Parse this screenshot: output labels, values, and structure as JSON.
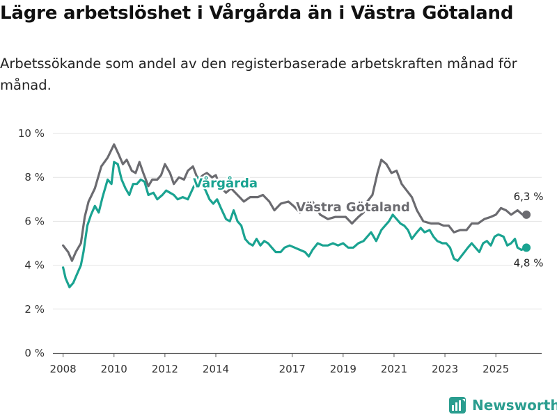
{
  "title": "Lägre arbetslöshet i Vårgårda än i Västra Götaland",
  "subtitle": "Arbetssökande som andel av den registerbaserade arbetskraften månad för månad.",
  "brand": "Newsworthy",
  "colors": {
    "vargarda": "#1aa391",
    "vastra": "#6b6b70",
    "brand": "#2a9d8f",
    "grid": "#e3e3e3",
    "axis": "#333333"
  },
  "chart_data": {
    "type": "line",
    "x_unit": "year (monthly data)",
    "x_range": [
      2007.6,
      2026.8
    ],
    "ylim": [
      0,
      10
    ],
    "yticks": [
      {
        "value": 0,
        "label": "0 %"
      },
      {
        "value": 2,
        "label": "2 %"
      },
      {
        "value": 4,
        "label": "4 %"
      },
      {
        "value": 6,
        "label": "6 %"
      },
      {
        "value": 8,
        "label": "8 %"
      },
      {
        "value": 10,
        "label": "10 %"
      }
    ],
    "xticks": [
      {
        "value": 2008,
        "label": "2008"
      },
      {
        "value": 2010,
        "label": "2010"
      },
      {
        "value": 2012,
        "label": "2012"
      },
      {
        "value": 2014,
        "label": "2014"
      },
      {
        "value": 2017,
        "label": "2017"
      },
      {
        "value": 2019,
        "label": "2019"
      },
      {
        "value": 2021,
        "label": "2021"
      },
      {
        "value": 2023,
        "label": "2023"
      },
      {
        "value": 2025,
        "label": "2025"
      }
    ],
    "series": [
      {
        "name": "Västra Götaland",
        "label": "Västra Götaland",
        "color": "#6b6b70",
        "end_label": "6,3 %",
        "points": [
          [
            2008.0,
            4.9
          ],
          [
            2008.2,
            4.6
          ],
          [
            2008.35,
            4.2
          ],
          [
            2008.5,
            4.6
          ],
          [
            2008.7,
            5.0
          ],
          [
            2008.85,
            6.2
          ],
          [
            2009.0,
            6.9
          ],
          [
            2009.25,
            7.5
          ],
          [
            2009.5,
            8.5
          ],
          [
            2009.75,
            8.9
          ],
          [
            2010.0,
            9.5
          ],
          [
            2010.2,
            9.0
          ],
          [
            2010.35,
            8.6
          ],
          [
            2010.5,
            8.8
          ],
          [
            2010.7,
            8.3
          ],
          [
            2010.85,
            8.2
          ],
          [
            2011.0,
            8.7
          ],
          [
            2011.15,
            8.2
          ],
          [
            2011.35,
            7.6
          ],
          [
            2011.5,
            7.9
          ],
          [
            2011.7,
            7.9
          ],
          [
            2011.85,
            8.1
          ],
          [
            2012.0,
            8.6
          ],
          [
            2012.2,
            8.2
          ],
          [
            2012.35,
            7.7
          ],
          [
            2012.55,
            8.0
          ],
          [
            2012.75,
            7.9
          ],
          [
            2012.9,
            8.3
          ],
          [
            2013.1,
            8.5
          ],
          [
            2013.3,
            7.9
          ],
          [
            2013.5,
            8.1
          ],
          [
            2013.65,
            8.2
          ],
          [
            2013.85,
            8.0
          ],
          [
            2014.0,
            8.1
          ],
          [
            2014.15,
            7.6
          ],
          [
            2014.4,
            7.3
          ],
          [
            2014.6,
            7.5
          ],
          [
            2014.85,
            7.2
          ],
          [
            2015.1,
            6.9
          ],
          [
            2015.35,
            7.1
          ],
          [
            2015.65,
            7.1
          ],
          [
            2015.85,
            7.2
          ],
          [
            2016.1,
            6.9
          ],
          [
            2016.3,
            6.5
          ],
          [
            2016.55,
            6.8
          ],
          [
            2016.85,
            6.9
          ],
          [
            2017.05,
            6.7
          ],
          [
            2017.3,
            6.4
          ],
          [
            2017.5,
            6.6
          ],
          [
            2017.8,
            6.9
          ],
          [
            2018.1,
            6.3
          ],
          [
            2018.4,
            6.1
          ],
          [
            2018.7,
            6.2
          ],
          [
            2018.9,
            6.2
          ],
          [
            2019.1,
            6.2
          ],
          [
            2019.35,
            5.9
          ],
          [
            2019.6,
            6.2
          ],
          [
            2019.8,
            6.4
          ],
          [
            2019.95,
            6.9
          ],
          [
            2020.15,
            7.2
          ],
          [
            2020.35,
            8.2
          ],
          [
            2020.5,
            8.8
          ],
          [
            2020.7,
            8.6
          ],
          [
            2020.9,
            8.2
          ],
          [
            2021.1,
            8.3
          ],
          [
            2021.3,
            7.7
          ],
          [
            2021.5,
            7.4
          ],
          [
            2021.7,
            7.1
          ],
          [
            2021.9,
            6.5
          ],
          [
            2022.15,
            6.0
          ],
          [
            2022.45,
            5.9
          ],
          [
            2022.75,
            5.9
          ],
          [
            2022.95,
            5.8
          ],
          [
            2023.15,
            5.8
          ],
          [
            2023.35,
            5.5
          ],
          [
            2023.6,
            5.6
          ],
          [
            2023.85,
            5.6
          ],
          [
            2024.05,
            5.9
          ],
          [
            2024.3,
            5.9
          ],
          [
            2024.55,
            6.1
          ],
          [
            2024.8,
            6.2
          ],
          [
            2025.0,
            6.3
          ],
          [
            2025.2,
            6.6
          ],
          [
            2025.4,
            6.5
          ],
          [
            2025.6,
            6.3
          ],
          [
            2025.85,
            6.5
          ],
          [
            2026.05,
            6.3
          ],
          [
            2026.2,
            6.3
          ]
        ]
      },
      {
        "name": "Vårgårda",
        "label": "Vårgårda",
        "color": "#1aa391",
        "end_label": "4,8 %",
        "points": [
          [
            2008.0,
            3.9
          ],
          [
            2008.1,
            3.4
          ],
          [
            2008.25,
            3.0
          ],
          [
            2008.4,
            3.2
          ],
          [
            2008.55,
            3.6
          ],
          [
            2008.7,
            4.0
          ],
          [
            2008.8,
            4.6
          ],
          [
            2008.95,
            5.8
          ],
          [
            2009.1,
            6.3
          ],
          [
            2009.25,
            6.7
          ],
          [
            2009.4,
            6.4
          ],
          [
            2009.55,
            7.1
          ],
          [
            2009.75,
            7.9
          ],
          [
            2009.9,
            7.7
          ],
          [
            2010.0,
            8.7
          ],
          [
            2010.15,
            8.6
          ],
          [
            2010.3,
            7.9
          ],
          [
            2010.45,
            7.5
          ],
          [
            2010.6,
            7.2
          ],
          [
            2010.75,
            7.7
          ],
          [
            2010.9,
            7.7
          ],
          [
            2011.05,
            7.9
          ],
          [
            2011.2,
            7.8
          ],
          [
            2011.35,
            7.2
          ],
          [
            2011.55,
            7.3
          ],
          [
            2011.7,
            7.0
          ],
          [
            2011.9,
            7.2
          ],
          [
            2012.05,
            7.4
          ],
          [
            2012.2,
            7.3
          ],
          [
            2012.35,
            7.2
          ],
          [
            2012.5,
            7.0
          ],
          [
            2012.7,
            7.1
          ],
          [
            2012.9,
            7.0
          ],
          [
            2013.1,
            7.5
          ],
          [
            2013.3,
            8.0
          ],
          [
            2013.45,
            7.7
          ],
          [
            2013.6,
            7.4
          ],
          [
            2013.75,
            7.0
          ],
          [
            2013.9,
            6.8
          ],
          [
            2014.05,
            7.0
          ],
          [
            2014.2,
            6.6
          ],
          [
            2014.4,
            6.1
          ],
          [
            2014.55,
            6.0
          ],
          [
            2014.7,
            6.5
          ],
          [
            2014.85,
            6.0
          ],
          [
            2015.0,
            5.8
          ],
          [
            2015.15,
            5.2
          ],
          [
            2015.3,
            5.0
          ],
          [
            2015.45,
            4.9
          ],
          [
            2015.6,
            5.2
          ],
          [
            2015.75,
            4.9
          ],
          [
            2015.9,
            5.1
          ],
          [
            2016.05,
            5.0
          ],
          [
            2016.2,
            4.8
          ],
          [
            2016.35,
            4.6
          ],
          [
            2016.55,
            4.6
          ],
          [
            2016.7,
            4.8
          ],
          [
            2016.9,
            4.9
          ],
          [
            2017.1,
            4.8
          ],
          [
            2017.3,
            4.7
          ],
          [
            2017.5,
            4.6
          ],
          [
            2017.65,
            4.4
          ],
          [
            2017.8,
            4.7
          ],
          [
            2018.0,
            5.0
          ],
          [
            2018.2,
            4.9
          ],
          [
            2018.4,
            4.9
          ],
          [
            2018.6,
            5.0
          ],
          [
            2018.8,
            4.9
          ],
          [
            2019.0,
            5.0
          ],
          [
            2019.2,
            4.8
          ],
          [
            2019.4,
            4.8
          ],
          [
            2019.6,
            5.0
          ],
          [
            2019.8,
            5.1
          ],
          [
            2019.95,
            5.3
          ],
          [
            2020.1,
            5.5
          ],
          [
            2020.3,
            5.1
          ],
          [
            2020.5,
            5.6
          ],
          [
            2020.65,
            5.8
          ],
          [
            2020.8,
            6.0
          ],
          [
            2020.95,
            6.3
          ],
          [
            2021.1,
            6.1
          ],
          [
            2021.25,
            5.9
          ],
          [
            2021.4,
            5.8
          ],
          [
            2021.55,
            5.6
          ],
          [
            2021.7,
            5.2
          ],
          [
            2021.9,
            5.5
          ],
          [
            2022.05,
            5.7
          ],
          [
            2022.2,
            5.5
          ],
          [
            2022.4,
            5.6
          ],
          [
            2022.55,
            5.3
          ],
          [
            2022.7,
            5.1
          ],
          [
            2022.9,
            5.0
          ],
          [
            2023.05,
            5.0
          ],
          [
            2023.2,
            4.8
          ],
          [
            2023.35,
            4.3
          ],
          [
            2023.5,
            4.2
          ],
          [
            2023.7,
            4.5
          ],
          [
            2023.9,
            4.8
          ],
          [
            2024.05,
            5.0
          ],
          [
            2024.2,
            4.8
          ],
          [
            2024.35,
            4.6
          ],
          [
            2024.5,
            5.0
          ],
          [
            2024.65,
            5.1
          ],
          [
            2024.8,
            4.9
          ],
          [
            2024.95,
            5.3
          ],
          [
            2025.1,
            5.4
          ],
          [
            2025.3,
            5.3
          ],
          [
            2025.45,
            4.9
          ],
          [
            2025.6,
            5.0
          ],
          [
            2025.75,
            5.2
          ],
          [
            2025.85,
            4.8
          ],
          [
            2026.0,
            4.7
          ],
          [
            2026.2,
            4.8
          ]
        ]
      }
    ]
  }
}
